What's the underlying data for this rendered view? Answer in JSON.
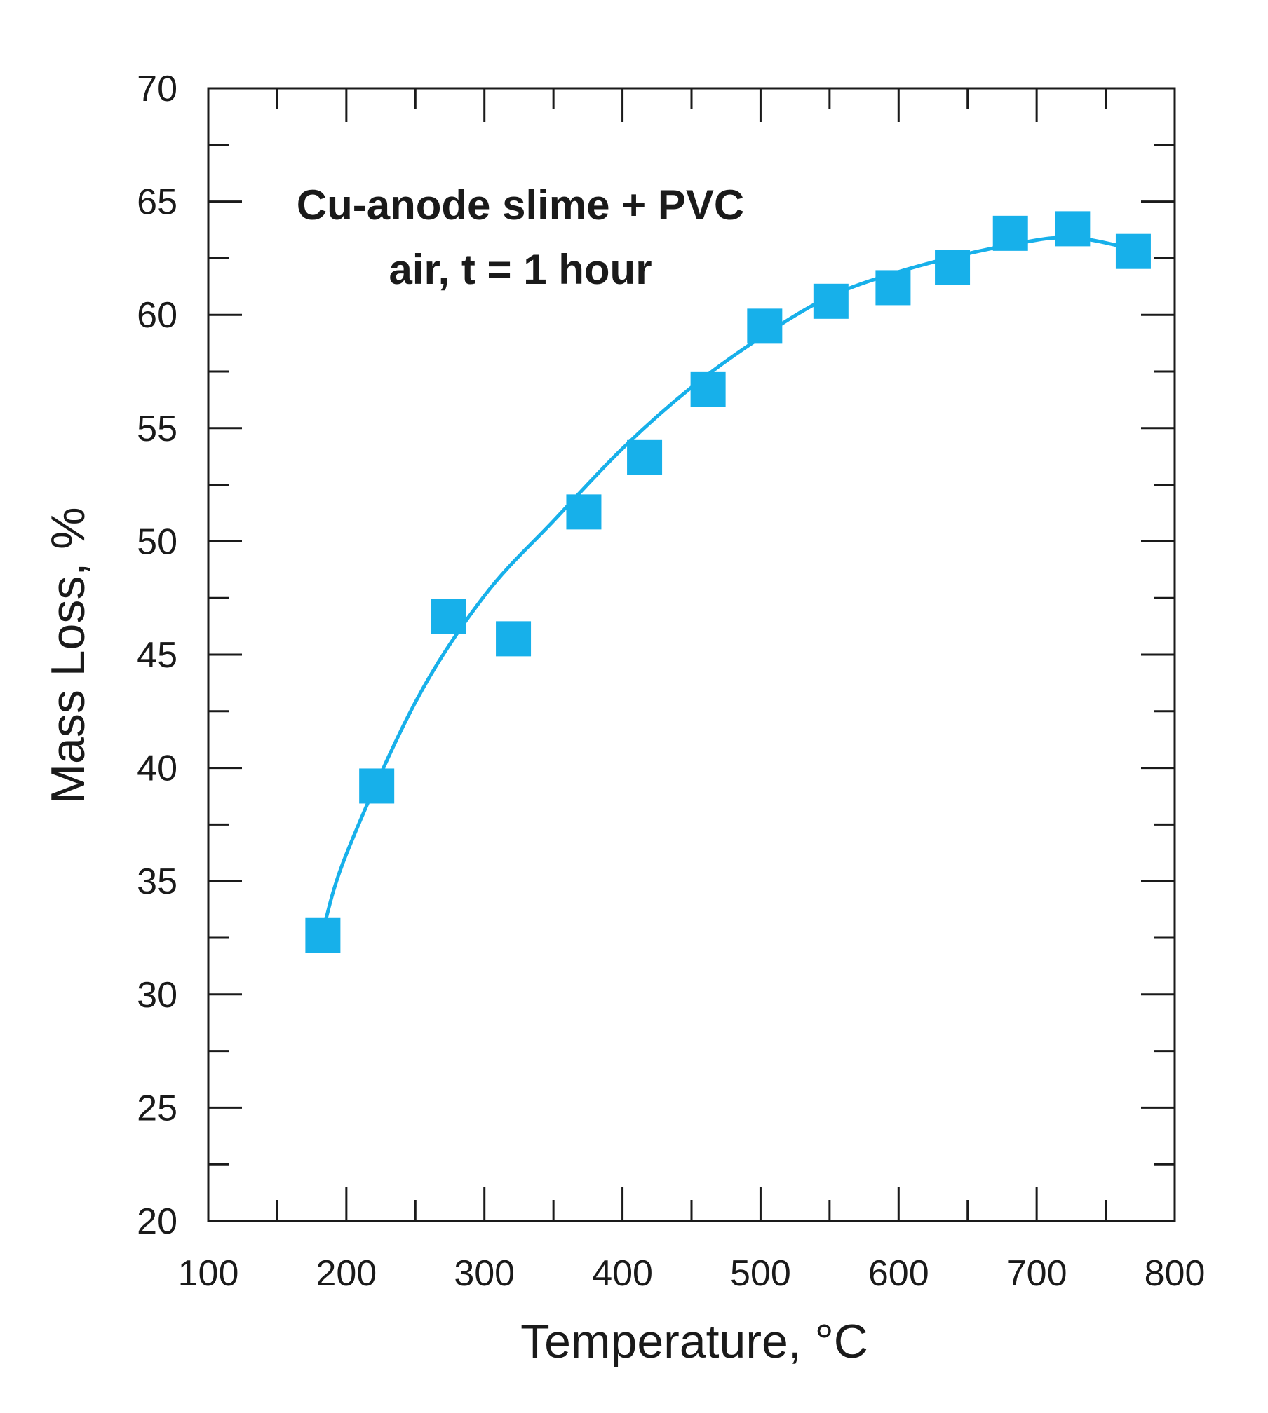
{
  "chart_data": {
    "type": "scatter",
    "title": "",
    "xlabel": "Temperature, °C",
    "ylabel": "Mass Loss, %",
    "xlim": [
      100,
      800
    ],
    "ylim": [
      20,
      70
    ],
    "x_ticks": [
      100,
      200,
      300,
      400,
      500,
      600,
      700,
      800
    ],
    "y_ticks": [
      20,
      25,
      30,
      35,
      40,
      45,
      50,
      55,
      60,
      65,
      70
    ],
    "grid": false,
    "annotation": [
      "Cu-anode slime + PVC",
      "air, t = 1 hour"
    ],
    "series": [
      {
        "name": "Cu-anode slime + PVC",
        "marker": "square",
        "color": "#17b0ea",
        "x": [
          183,
          222,
          274,
          321,
          372,
          416,
          462,
          503,
          551,
          596,
          639,
          681,
          726,
          770
        ],
        "y": [
          32.6,
          39.2,
          46.7,
          45.7,
          51.3,
          53.7,
          56.7,
          59.5,
          60.6,
          61.2,
          62.1,
          63.6,
          63.8,
          62.8
        ]
      }
    ],
    "fit_curve": {
      "name": "trend",
      "color": "#17b0ea",
      "x": [
        183,
        200,
        250,
        300,
        350,
        400,
        450,
        500,
        550,
        600,
        650,
        700,
        720,
        740,
        770
      ],
      "y": [
        32.8,
        36.2,
        42.9,
        47.6,
        50.9,
        54.1,
        56.8,
        59.0,
        60.8,
        61.9,
        62.7,
        63.3,
        63.4,
        63.3,
        62.9
      ]
    }
  }
}
